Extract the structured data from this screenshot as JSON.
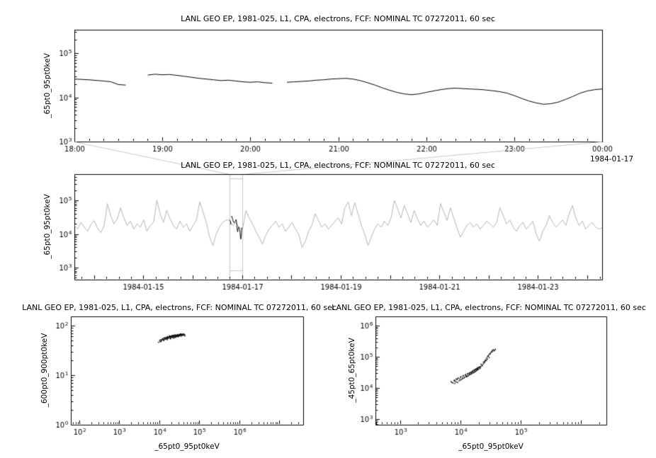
{
  "accent_colors": {
    "foreground": "#000000",
    "context_series": "#b4b4b4",
    "selection_box": "#c9c9c9",
    "background": "#ffffff"
  },
  "chart_data": [
    {
      "id": "timeseries-zoom",
      "type": "line",
      "title": "LANL GEO EP, 1981-025, L1, CPA, electrons, FCF: NOMINAL TC 07272011, 60 sec",
      "ylabel": "_65pt0_95pt0keV",
      "x_axis": {
        "type": "time",
        "start": "1984-01-16T18:00",
        "end": "1984-01-17T00:00",
        "tick_labels": [
          "18:00",
          "19:00",
          "20:00",
          "21:00",
          "22:00",
          "23:00",
          "00:00"
        ],
        "context_label": "1984-01-17"
      },
      "y_axis": {
        "scale": "log",
        "min": 1000,
        "max": 340000,
        "tick_exponents": [
          3,
          4,
          5
        ]
      },
      "series": {
        "name": "_65pt0_95pt0keV",
        "color": "#000000",
        "cadence_minutes": 5,
        "values": [
          26000,
          25500,
          25000,
          24200,
          23500,
          22500,
          19500,
          19000,
          null,
          null,
          32000,
          33500,
          32500,
          33000,
          31500,
          30000,
          28500,
          27000,
          26000,
          25000,
          24000,
          24500,
          23500,
          22500,
          22000,
          22500,
          21500,
          21000,
          null,
          22000,
          22500,
          23000,
          23500,
          24500,
          25000,
          26000,
          26500,
          27000,
          26000,
          24000,
          21500,
          19000,
          16500,
          14500,
          13000,
          12000,
          11500,
          12000,
          13000,
          14000,
          15000,
          15800,
          16200,
          15800,
          15500,
          15200,
          14800,
          14200,
          13500,
          12500,
          11000,
          9500,
          8300,
          7500,
          7000,
          7200,
          7800,
          9000,
          10500,
          12500,
          14000,
          15000,
          15500
        ]
      }
    },
    {
      "id": "timeseries-context",
      "type": "line",
      "title": "LANL GEO EP, 1981-025, L1, CPA, electrons, FCF: NOMINAL TC 07272011, 60 sec",
      "ylabel": "_65pt0_95pt0keV",
      "x_axis": {
        "type": "time",
        "min_day": 13.6,
        "max_day": 24.3,
        "ticks_day": [
          15,
          17,
          19,
          21,
          23
        ],
        "tick_labels": [
          "1984-01-15",
          "1984-01-17",
          "1984-01-19",
          "1984-01-21",
          "1984-01-23"
        ]
      },
      "y_axis": {
        "scale": "log",
        "min": 440,
        "max": 600000,
        "tick_exponents": [
          3,
          4,
          5
        ]
      },
      "series": {
        "name": "_65pt0_95pt0keV",
        "color": "#b4b4b4",
        "start_day": 13.6,
        "step_day": 0.066875,
        "values": [
          18000,
          14000,
          22000,
          16000,
          12000,
          19000,
          25000,
          15000,
          11000,
          17000,
          80000,
          35000,
          20000,
          28000,
          60000,
          30000,
          18000,
          24000,
          14000,
          20000,
          16000,
          26000,
          12000,
          18000,
          22000,
          100000,
          40000,
          22000,
          50000,
          28000,
          18000,
          14000,
          24000,
          16000,
          20000,
          12000,
          18000,
          26000,
          90000,
          45000,
          22000,
          8000,
          4500,
          10000,
          16000,
          22000,
          26000,
          26000,
          18000,
          22000,
          15000,
          14000,
          50000,
          30000,
          20000,
          12000,
          8000,
          5000,
          9000,
          14000,
          18000,
          24000,
          16000,
          20000,
          12000,
          16000,
          22000,
          14000,
          10000,
          4000,
          6000,
          12000,
          18000,
          40000,
          25000,
          16000,
          20000,
          14000,
          18000,
          24000,
          30000,
          20000,
          60000,
          90000,
          35000,
          85000,
          40000,
          18000,
          10000,
          4500,
          8000,
          14000,
          20000,
          16000,
          24000,
          18000,
          30000,
          100000,
          55000,
          30000,
          70000,
          40000,
          22000,
          50000,
          28000,
          18000,
          24000,
          16000,
          20000,
          26000,
          18000,
          80000,
          45000,
          25000,
          60000,
          30000,
          15000,
          8000,
          12000,
          18000,
          22000,
          16000,
          20000,
          14000,
          18000,
          24000,
          20000,
          16000,
          22000,
          60000,
          35000,
          20000,
          26000,
          16000,
          12000,
          18000,
          22000,
          14000,
          18000,
          24000,
          10000,
          6000,
          12000,
          18000,
          35000,
          22000,
          16000,
          20000,
          26000,
          18000,
          40000,
          70000,
          30000,
          18000,
          24000,
          14000,
          18000,
          22000,
          16000,
          14000,
          15000
        ]
      },
      "highlight": {
        "note": "zoom selection showing the interval of the top panel",
        "start_day": 16.75,
        "end_day": 17.0,
        "box_color": "#c9c9c9",
        "series_color": "#000000"
      }
    },
    {
      "id": "scatter-600-900-vs-65-95",
      "type": "scatter",
      "title": "LANL GEO EP, 1981-025, L1, CPA, electrons, FCF: NOMINAL TC 07272011, 60 sec",
      "xlabel": "_65pt0_95pt0keV",
      "ylabel": "_600pt0_900pt0keV",
      "x_axis": {
        "scale": "log",
        "min": 61,
        "max": 40000000,
        "tick_exponents": [
          2,
          3,
          4,
          5,
          6
        ]
      },
      "y_axis": {
        "scale": "log",
        "min": 1,
        "max": 153,
        "tick_exponents": [
          0,
          1,
          2
        ]
      },
      "color": "#000000",
      "points": [
        [
          9500,
          46
        ],
        [
          10200,
          50
        ],
        [
          11000,
          48
        ],
        [
          11800,
          52
        ],
        [
          12500,
          55
        ],
        [
          13000,
          50
        ],
        [
          13500,
          57
        ],
        [
          14200,
          53
        ],
        [
          15000,
          58
        ],
        [
          15500,
          54
        ],
        [
          16000,
          60
        ],
        [
          16800,
          56
        ],
        [
          17500,
          59
        ],
        [
          18000,
          62
        ],
        [
          19000,
          57
        ],
        [
          19500,
          61
        ],
        [
          20000,
          58
        ],
        [
          21000,
          63
        ],
        [
          22000,
          60
        ],
        [
          22500,
          64
        ],
        [
          23000,
          59
        ],
        [
          24000,
          62
        ],
        [
          25000,
          65
        ],
        [
          26000,
          61
        ],
        [
          27000,
          64
        ],
        [
          28000,
          60
        ],
        [
          29000,
          66
        ],
        [
          30000,
          62
        ],
        [
          31000,
          65
        ],
        [
          32000,
          63
        ],
        [
          33000,
          67
        ],
        [
          34000,
          64
        ],
        [
          35000,
          61
        ],
        [
          36000,
          66
        ],
        [
          38000,
          63
        ],
        [
          40000,
          68
        ],
        [
          42000,
          65
        ],
        [
          44000,
          62
        ],
        [
          12000,
          53
        ],
        [
          13800,
          56
        ],
        [
          15800,
          52
        ],
        [
          17200,
          58
        ],
        [
          18500,
          55
        ],
        [
          19800,
          60
        ],
        [
          21500,
          57
        ],
        [
          23500,
          61
        ],
        [
          25500,
          58
        ],
        [
          27500,
          63
        ],
        [
          29500,
          60
        ],
        [
          31500,
          64
        ],
        [
          10500,
          47
        ],
        [
          11500,
          51
        ],
        [
          14500,
          55
        ],
        [
          16500,
          58
        ],
        [
          18800,
          61
        ],
        [
          20500,
          59
        ],
        [
          24500,
          63
        ],
        [
          26500,
          62
        ],
        [
          28500,
          65
        ],
        [
          30500,
          61
        ],
        [
          33500,
          66
        ],
        [
          36500,
          64
        ],
        [
          39000,
          67
        ],
        [
          41000,
          64
        ],
        [
          22800,
          56
        ],
        [
          19200,
          54
        ],
        [
          16200,
          57
        ],
        [
          13200,
          52
        ],
        [
          25800,
          60
        ],
        [
          34500,
          68
        ],
        [
          12300,
          54
        ],
        [
          14800,
          57
        ],
        [
          17800,
          60
        ],
        [
          20800,
          62
        ],
        [
          23800,
          58
        ],
        [
          26800,
          63
        ],
        [
          29800,
          61
        ],
        [
          32800,
          65
        ],
        [
          35500,
          67
        ],
        [
          37500,
          65
        ],
        [
          11200,
          49
        ],
        [
          13600,
          54
        ],
        [
          15300,
          56
        ],
        [
          18200,
          59
        ],
        [
          21800,
          61
        ],
        [
          24800,
          64
        ],
        [
          27800,
          62
        ],
        [
          30800,
          63
        ],
        [
          33800,
          66
        ],
        [
          43000,
          66
        ],
        [
          10800,
          52
        ],
        [
          12800,
          51
        ],
        [
          16400,
          55
        ],
        [
          19400,
          58
        ],
        [
          22300,
          62
        ],
        [
          25300,
          59
        ],
        [
          28300,
          64
        ],
        [
          31800,
          62
        ],
        [
          36000,
          65
        ],
        [
          39500,
          66
        ]
      ]
    },
    {
      "id": "scatter-45-65-vs-65-95",
      "type": "scatter",
      "title": "LANL GEO EP, 1981-025, L1, CPA, electrons, FCF: NOMINAL TC 07272011, 60 sec",
      "xlabel": "_65pt0_95pt0keV",
      "ylabel": "_45pt0_65pt0keV",
      "x_axis": {
        "scale": "log",
        "min": 390,
        "max": 2630000,
        "tick_exponents": [
          3,
          4,
          5
        ]
      },
      "y_axis": {
        "scale": "log",
        "min": 660,
        "max": 1995000,
        "tick_exponents": [
          3,
          4,
          5,
          6
        ]
      },
      "color": "#000000",
      "points": [
        [
          7000,
          16000
        ],
        [
          7500,
          14500
        ],
        [
          8000,
          18000
        ],
        [
          8500,
          15500
        ],
        [
          9000,
          20000
        ],
        [
          9500,
          17000
        ],
        [
          10000,
          22000
        ],
        [
          10500,
          19000
        ],
        [
          11000,
          24000
        ],
        [
          11500,
          21000
        ],
        [
          12000,
          26000
        ],
        [
          12500,
          23000
        ],
        [
          13000,
          28000
        ],
        [
          13500,
          25000
        ],
        [
          14000,
          30000
        ],
        [
          14500,
          27000
        ],
        [
          15000,
          32000
        ],
        [
          15500,
          29000
        ],
        [
          16000,
          35000
        ],
        [
          16500,
          31000
        ],
        [
          17000,
          38000
        ],
        [
          17500,
          33000
        ],
        [
          18000,
          40000
        ],
        [
          18500,
          36000
        ],
        [
          19000,
          43000
        ],
        [
          19500,
          39000
        ],
        [
          20000,
          46000
        ],
        [
          21000,
          42000
        ],
        [
          22000,
          50000
        ],
        [
          23000,
          55000
        ],
        [
          24000,
          60000
        ],
        [
          25000,
          70000
        ],
        [
          26000,
          80000
        ],
        [
          27000,
          90000
        ],
        [
          28000,
          100000
        ],
        [
          29000,
          110000
        ],
        [
          30000,
          120000
        ],
        [
          31000,
          130000
        ],
        [
          32000,
          140000
        ],
        [
          33000,
          150000
        ],
        [
          34000,
          160000
        ],
        [
          35000,
          170000
        ],
        [
          36000,
          155000
        ],
        [
          37000,
          165000
        ],
        [
          38000,
          175000
        ],
        [
          30000,
          95000
        ],
        [
          28000,
          85000
        ],
        [
          26000,
          75000
        ],
        [
          24000,
          68000
        ],
        [
          22000,
          58000
        ],
        [
          9000,
          15000
        ],
        [
          10000,
          18000
        ],
        [
          11000,
          20500
        ],
        [
          12500,
          24500
        ],
        [
          14000,
          28500
        ],
        [
          16000,
          33000
        ],
        [
          18000,
          38500
        ],
        [
          20000,
          44000
        ],
        [
          8000,
          14000
        ],
        [
          8500,
          19500
        ],
        [
          13000,
          23500
        ],
        [
          15000,
          30500
        ],
        [
          17000,
          36000
        ],
        [
          19000,
          41000
        ],
        [
          21000,
          48000
        ],
        [
          23000,
          52000
        ],
        [
          25000,
          65000
        ],
        [
          27000,
          78000
        ],
        [
          29000,
          105000
        ],
        [
          31000,
          125000
        ],
        [
          7200,
          15000
        ],
        [
          7800,
          17000
        ],
        [
          8200,
          16500
        ],
        [
          8800,
          18500
        ],
        [
          9200,
          21000
        ],
        [
          9800,
          19500
        ],
        [
          10200,
          23000
        ],
        [
          10800,
          20500
        ],
        [
          11200,
          25000
        ],
        [
          11800,
          22500
        ],
        [
          12200,
          27000
        ],
        [
          12800,
          24000
        ],
        [
          13200,
          29000
        ],
        [
          13800,
          26000
        ],
        [
          14200,
          31000
        ],
        [
          14800,
          28000
        ],
        [
          15200,
          33500
        ],
        [
          15800,
          30000
        ],
        [
          16200,
          36500
        ],
        [
          16800,
          32000
        ],
        [
          17200,
          39000
        ],
        [
          17800,
          34500
        ],
        [
          18200,
          41500
        ],
        [
          18800,
          37000
        ],
        [
          19200,
          44500
        ],
        [
          19800,
          40000
        ],
        [
          20500,
          47000
        ],
        [
          21500,
          45000
        ],
        [
          25500,
          72000
        ],
        [
          33500,
          145000
        ]
      ]
    }
  ]
}
